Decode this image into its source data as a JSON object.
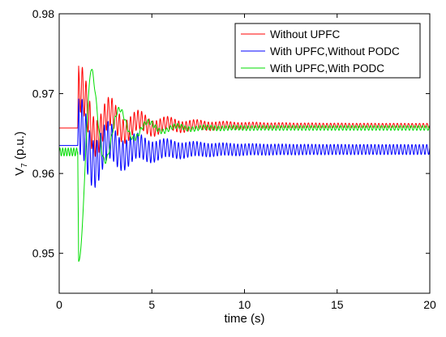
{
  "chart_data": {
    "type": "line",
    "title": "",
    "xlabel": "time (s)",
    "ylabel": "V",
    "ylabel_subscript": "7",
    "ylabel_suffix": " (p.u.)",
    "xlim": [
      0,
      20
    ],
    "ylim": [
      0.945,
      0.98
    ],
    "xticks": [
      0,
      5,
      10,
      15,
      20
    ],
    "xtick_labels": [
      "0",
      "5",
      "10",
      "15",
      "20"
    ],
    "yticks": [
      0.95,
      0.96,
      0.97,
      0.98
    ],
    "ytick_labels": [
      "0.95",
      "0.96",
      "0.97",
      "0.98"
    ],
    "grid": false,
    "legend_position": "top-right",
    "disturbance_time": 1.0,
    "series": [
      {
        "name": "Without UPFC",
        "color": "#ff0000",
        "pre_value": 0.9657,
        "peak": 0.975,
        "final_mean": 0.966,
        "osc_amplitude_initial": 0.0055,
        "osc_amplitude_final": 0.0005,
        "osc_period_s": 0.2
      },
      {
        "name": "With UPFC,Without PODC",
        "color": "#0000ff",
        "pre_value": 0.9635,
        "peak": 0.9705,
        "final_mean": 0.963,
        "osc_amplitude_initial": 0.0055,
        "osc_amplitude_final": 0.0009,
        "osc_period_s": 0.2
      },
      {
        "name": "With UPFC,With PODC",
        "color": "#00dd00",
        "pre_value": 0.9627,
        "trough": 0.949,
        "peak": 0.973,
        "final_mean": 0.9657,
        "osc_amplitude_initial": 0.0055,
        "osc_amplitude_final": 0.0003,
        "osc_period_s": 1.55
      }
    ]
  }
}
